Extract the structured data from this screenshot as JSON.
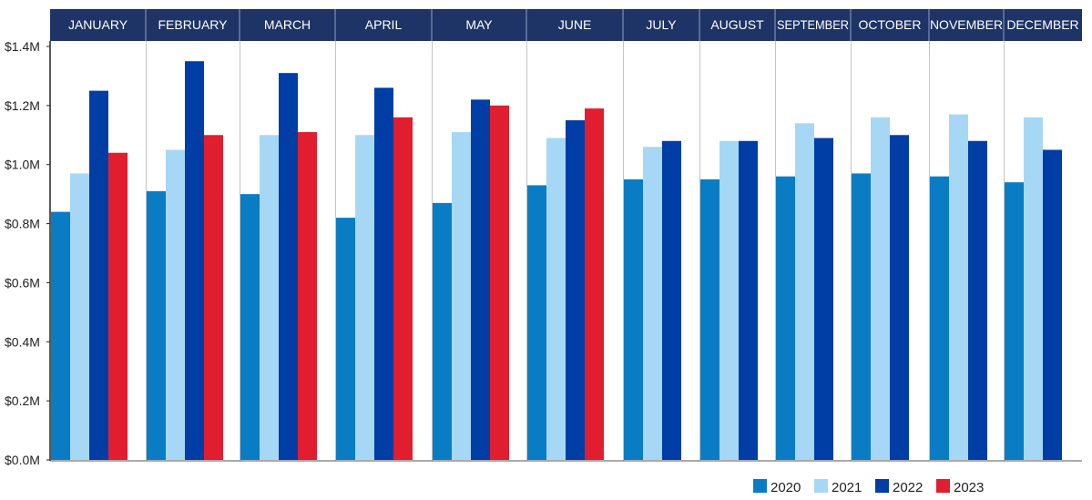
{
  "chart_data": {
    "type": "bar",
    "categories": [
      "JANUARY",
      "FEBRUARY",
      "MARCH",
      "APRIL",
      "MAY",
      "JUNE",
      "JULY",
      "AUGUST",
      "SEPTEMBER",
      "OCTOBER",
      "NOVEMBER",
      "DECEMBER"
    ],
    "series": [
      {
        "name": "2020",
        "color": "#0a7cc4",
        "values": [
          0.84,
          0.91,
          0.9,
          0.82,
          0.87,
          0.93,
          0.95,
          0.95,
          0.96,
          0.97,
          0.96,
          0.94
        ]
      },
      {
        "name": "2021",
        "color": "#a6d8f5",
        "values": [
          0.97,
          1.05,
          1.1,
          1.1,
          1.11,
          1.09,
          1.06,
          1.08,
          1.14,
          1.16,
          1.17,
          1.16
        ]
      },
      {
        "name": "2022",
        "color": "#003da5",
        "values": [
          1.25,
          1.35,
          1.31,
          1.26,
          1.22,
          1.15,
          1.08,
          1.08,
          1.09,
          1.1,
          1.08,
          1.05
        ]
      },
      {
        "name": "2023",
        "color": "#e01e2f",
        "values": [
          1.04,
          1.1,
          1.11,
          1.16,
          1.2,
          1.19,
          null,
          null,
          null,
          null,
          null,
          null
        ]
      }
    ],
    "y_ticks": [
      "$0.0M",
      "$0.2M",
      "$0.4M",
      "$0.6M",
      "$0.8M",
      "$1.0M",
      "$1.2M",
      "$1.4M"
    ],
    "ylim": [
      0,
      1.4
    ],
    "unit": "millions of dollars",
    "header_color": "#1f3466",
    "grid": false,
    "legend_position": "bottom-right"
  }
}
